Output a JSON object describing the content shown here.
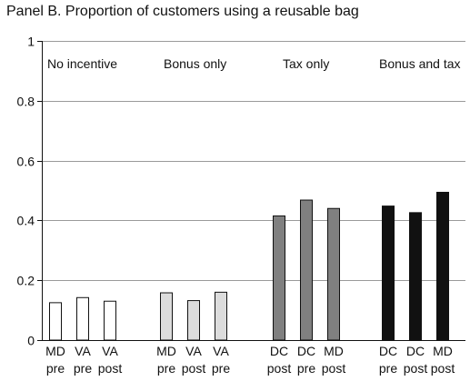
{
  "chart_data": {
    "type": "bar",
    "title": "Panel B. Proportion of customers using a reusable bag",
    "xlabel": "",
    "ylabel": "",
    "ylim": [
      0,
      1
    ],
    "yticks": [
      {
        "value": 0,
        "label": "0"
      },
      {
        "value": 0.2,
        "label": "0.2"
      },
      {
        "value": 0.4,
        "label": "0.4"
      },
      {
        "value": 0.6,
        "label": "0.6"
      },
      {
        "value": 0.8,
        "label": "0.8"
      },
      {
        "value": 1,
        "label": "1"
      }
    ],
    "grid": true,
    "groups": [
      {
        "name": "No incentive",
        "color": "#ffffff",
        "bars": [
          {
            "store": "MD",
            "period": "pre",
            "value": 0.125
          },
          {
            "store": "VA",
            "period": "pre",
            "value": 0.142
          },
          {
            "store": "VA",
            "period": "post",
            "value": 0.13
          }
        ]
      },
      {
        "name": "Bonus only",
        "color": "#dcdcdc",
        "bars": [
          {
            "store": "MD",
            "period": "pre",
            "value": 0.158
          },
          {
            "store": "VA",
            "period": "post",
            "value": 0.132
          },
          {
            "store": "VA",
            "period": "pre",
            "value": 0.16
          }
        ]
      },
      {
        "name": "Tax only",
        "color": "#808080",
        "bars": [
          {
            "store": "DC",
            "period": "post",
            "value": 0.415
          },
          {
            "store": "DC",
            "period": "pre",
            "value": 0.468
          },
          {
            "store": "MD",
            "period": "post",
            "value": 0.44
          }
        ]
      },
      {
        "name": "Bonus and tax",
        "color": "#111111",
        "bars": [
          {
            "store": "DC",
            "period": "pre",
            "value": 0.448
          },
          {
            "store": "DC",
            "period": "post",
            "value": 0.426
          },
          {
            "store": "MD",
            "period": "post",
            "value": 0.494
          }
        ]
      }
    ]
  }
}
